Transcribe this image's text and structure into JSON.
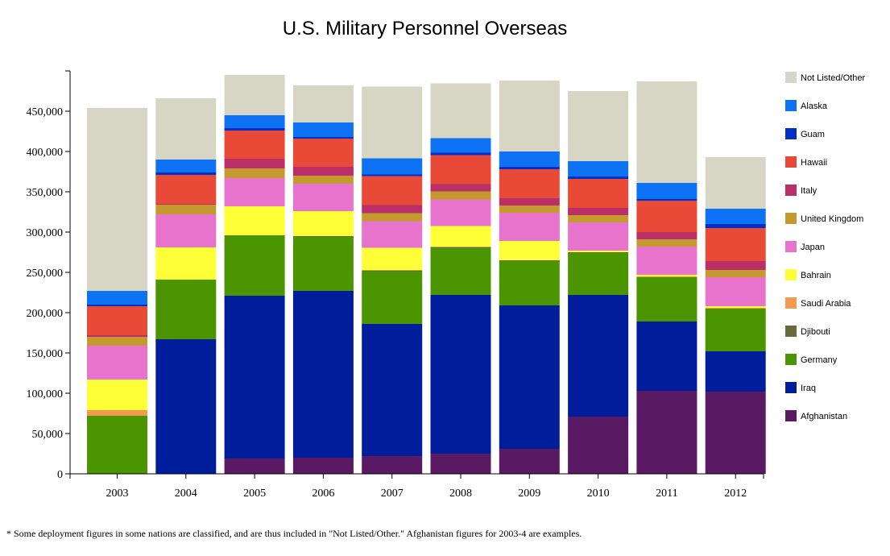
{
  "chart_data": {
    "type": "bar",
    "stacked": true,
    "title": "U.S. Military Personnel Overseas",
    "xlabel": "",
    "ylabel": "",
    "ylim": [
      0,
      500000
    ],
    "yticks": [
      0,
      50000,
      100000,
      150000,
      200000,
      250000,
      300000,
      350000,
      400000,
      450000
    ],
    "ytick_labels": [
      "0",
      "50,000",
      "100,000",
      "150,000",
      "200,000",
      "250,000",
      "300,000",
      "350,000",
      "400,000",
      "450,000"
    ],
    "legend_position": "right",
    "categories": [
      "2003",
      "2004",
      "2005",
      "2006",
      "2007",
      "2008",
      "2009",
      "2010",
      "2011",
      "2012"
    ],
    "series": [
      {
        "name": "Afghanistan",
        "color": "#5a1a63",
        "values": [
          0,
          0,
          19000,
          20000,
          22000,
          25000,
          31000,
          71000,
          103000,
          102000
        ]
      },
      {
        "name": "Iraq",
        "color": "#001e9b",
        "values": [
          0,
          167000,
          202000,
          207000,
          164000,
          197000,
          178000,
          151000,
          86000,
          50000
        ]
      },
      {
        "name": "Germany",
        "color": "#4b9500",
        "values": [
          72000,
          74000,
          75000,
          67000,
          65000,
          58000,
          55000,
          52000,
          55000,
          53000
        ]
      },
      {
        "name": "Djibouti",
        "color": "#6b6a3c",
        "values": [
          0,
          0,
          0,
          1000,
          1500,
          1500,
          1000,
          1000,
          0,
          0
        ]
      },
      {
        "name": "Saudi Arabia",
        "color": "#f29b4f",
        "values": [
          7000,
          0,
          0,
          0,
          0,
          0,
          0,
          0,
          1000,
          1000
        ]
      },
      {
        "name": "Bahrain",
        "color": "#ffff37",
        "values": [
          38000,
          40000,
          36000,
          31000,
          28000,
          26000,
          24000,
          2000,
          2000,
          2000
        ]
      },
      {
        "name": "Japan",
        "color": "#e873cd",
        "values": [
          42000,
          41000,
          35000,
          34000,
          33000,
          33000,
          35000,
          35000,
          35000,
          36000
        ]
      },
      {
        "name": "United Kingdom",
        "color": "#c4992d",
        "values": [
          11000,
          12000,
          12000,
          10000,
          10000,
          10000,
          9000,
          9000,
          9000,
          9000
        ]
      },
      {
        "name": "Italy",
        "color": "#ba2f67",
        "values": [
          2000,
          1000,
          12000,
          11000,
          10000,
          9000,
          9000,
          9000,
          9000,
          11000
        ]
      },
      {
        "name": "Hawaii",
        "color": "#e84a37",
        "values": [
          36000,
          36000,
          35000,
          35000,
          36000,
          36000,
          36000,
          36000,
          39000,
          41000
        ]
      },
      {
        "name": "Guam",
        "color": "#0031c7",
        "values": [
          2000,
          3000,
          3000,
          2000,
          2000,
          3000,
          3000,
          3000,
          2000,
          5000
        ]
      },
      {
        "name": "Alaska",
        "color": "#0d72f4",
        "values": [
          17000,
          16000,
          16000,
          18000,
          20000,
          18000,
          19000,
          19000,
          20000,
          19000
        ]
      },
      {
        "name": "Not Listed/Other",
        "color": "#d7d6c5",
        "values": [
          227000,
          76000,
          50000,
          46000,
          89000,
          68000,
          88000,
          87000,
          126000,
          64000
        ]
      }
    ]
  },
  "footnote": "* Some deployment figures in some nations are classified, and are thus included in \"Not Listed/Other.\" Afghanistan figures for 2003-4 are examples."
}
